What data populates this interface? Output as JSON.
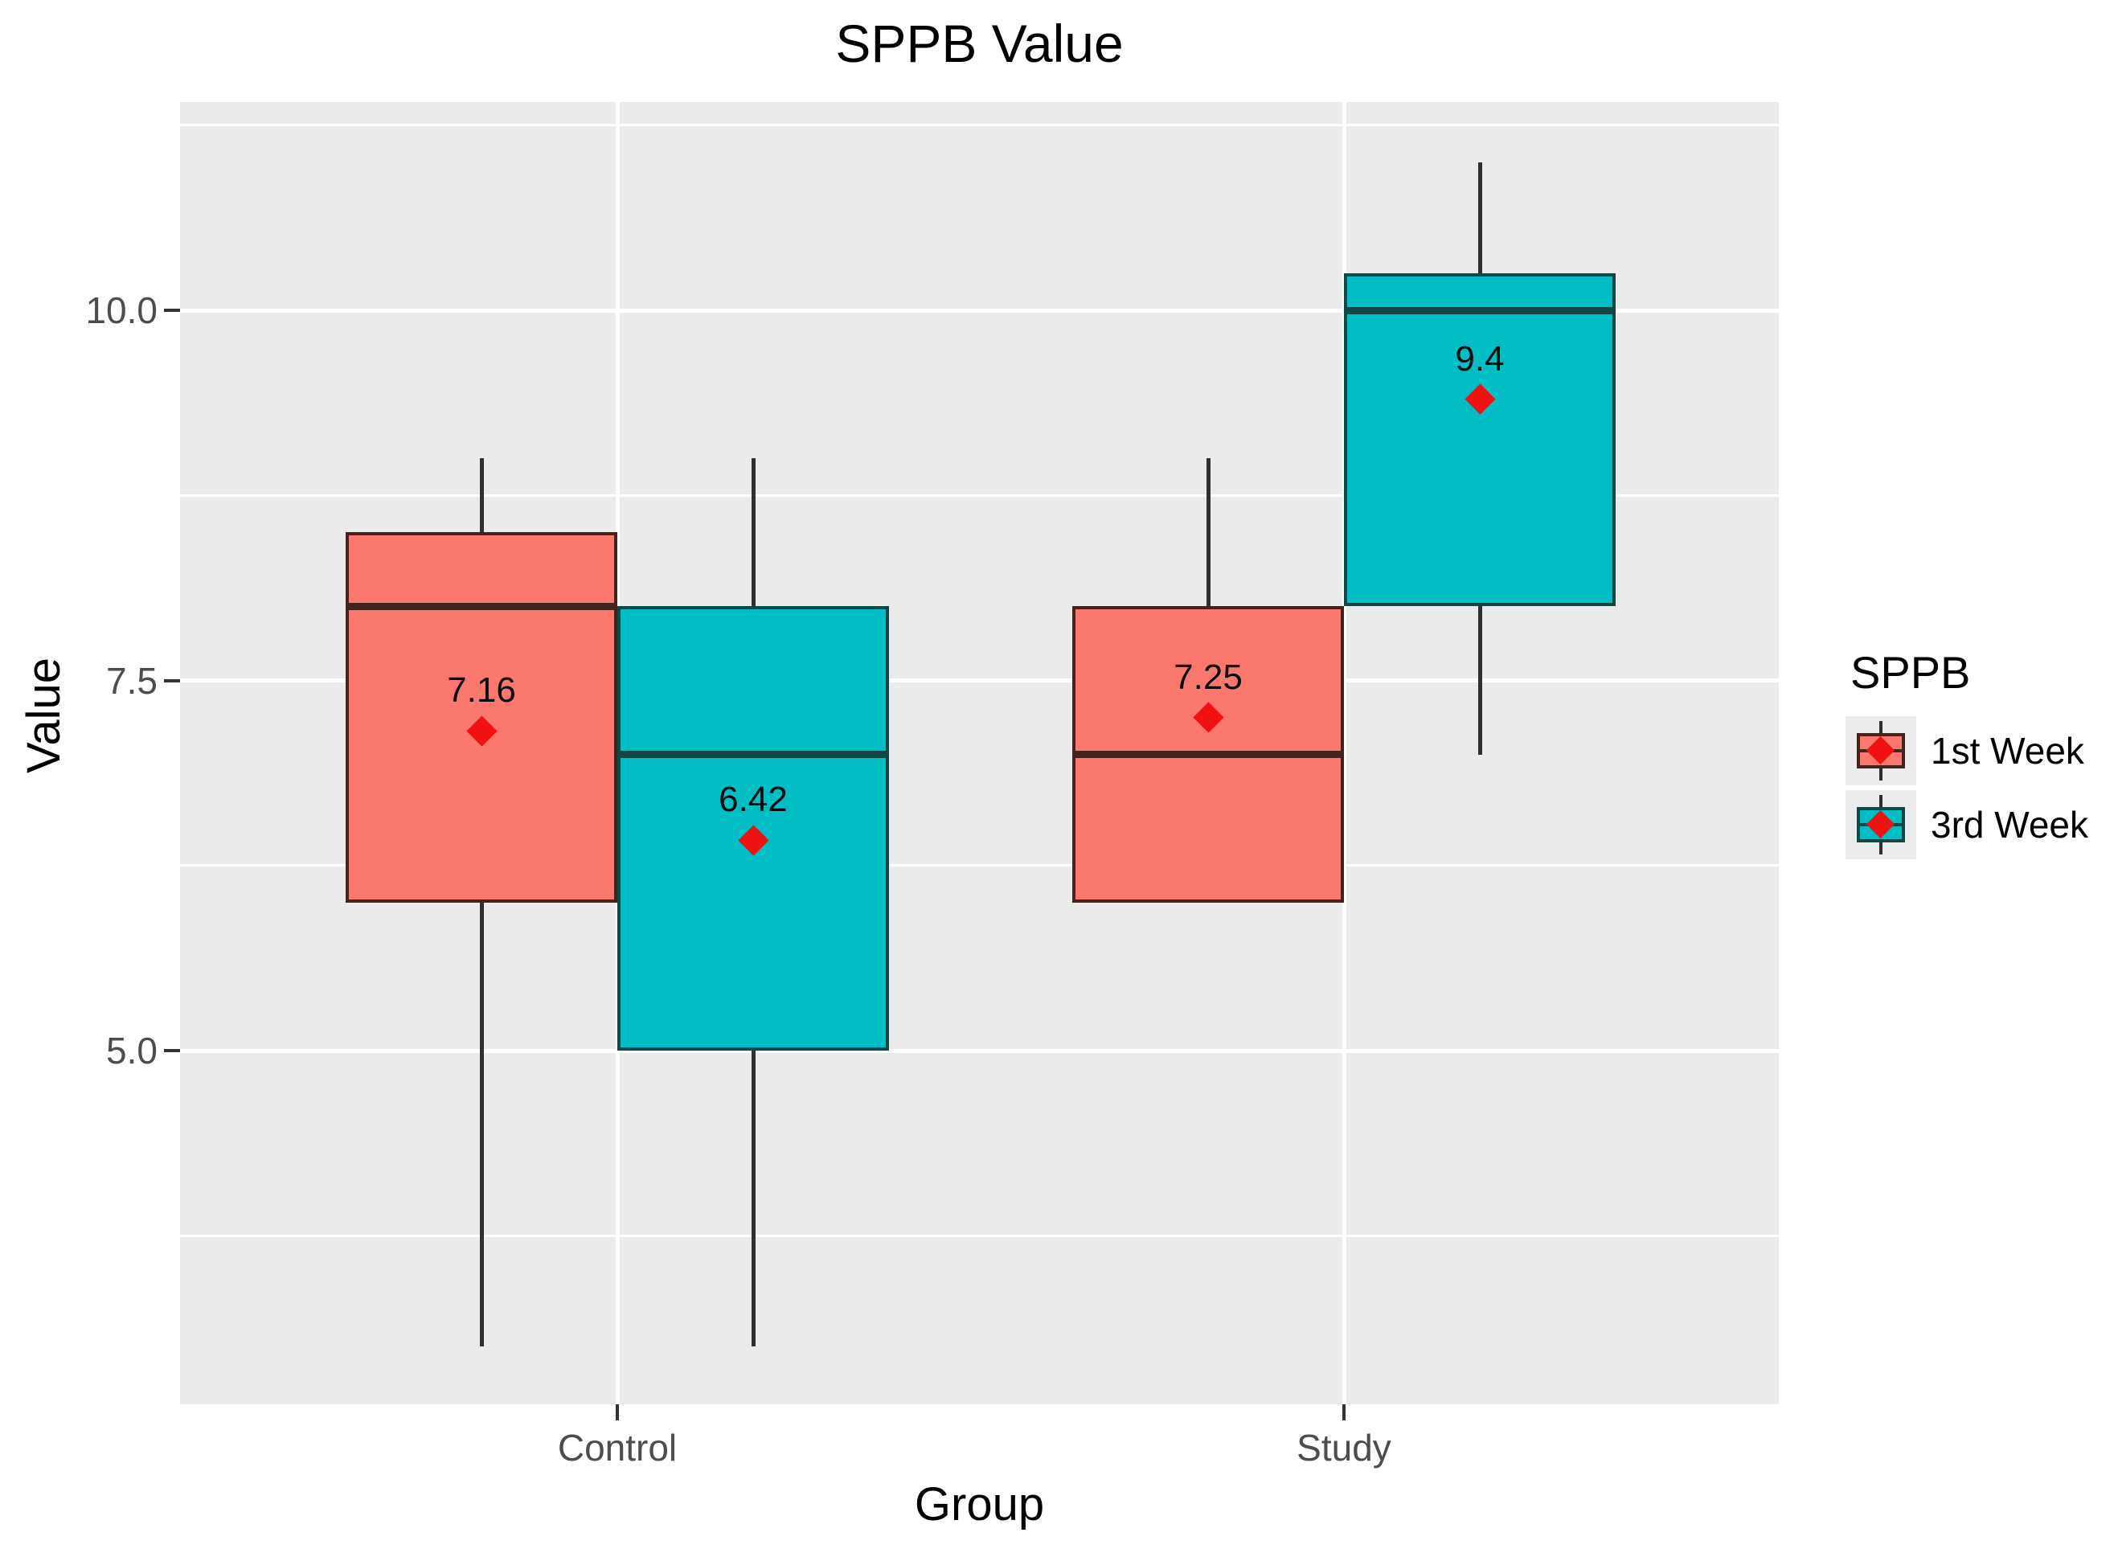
{
  "chart_data": {
    "type": "boxplot",
    "title": "SPPB Value",
    "xlabel": "Group",
    "ylabel": "Value",
    "ylim": [
      2.6,
      11.4
    ],
    "grid": "on",
    "legend_position": "right",
    "categories": [
      "Control",
      "Study"
    ],
    "yticks": [
      {
        "value": 5.0,
        "label": "5.0"
      },
      {
        "value": 7.5,
        "label": "7.5"
      },
      {
        "value": 10.0,
        "label": "10.0"
      }
    ],
    "minor_gridline_values": [
      3.75,
      6.25,
      8.75,
      11.25
    ],
    "legend": {
      "title": "SPPB",
      "entries": [
        {
          "label": "1st Week"
        },
        {
          "label": "3rd Week"
        }
      ]
    },
    "colors": {
      "panel_background": "#EBEBEB",
      "gridline": "#FFFFFF",
      "whisker": "#303030",
      "mean_point": "#F01212",
      "tick_label": "#4D4D4D",
      "series_1st_week_fill": "#FA786E",
      "series_1st_week_border": "#44221E",
      "series_3rd_week_fill": "#00BEC4",
      "series_3rd_week_border": "#0E4746"
    },
    "series": [
      {
        "name": "1st Week",
        "fill": "#FA786E",
        "border": "#44221E",
        "boxes": [
          {
            "group": "Control",
            "whisker_low": 3.0,
            "q1": 6.0,
            "median": 8.0,
            "q3": 8.5,
            "whisker_high": 9.0,
            "mean": 7.16,
            "mean_label": "7.16"
          },
          {
            "group": "Study",
            "whisker_low": 6.0,
            "q1": 6.0,
            "median": 7.0,
            "q3": 8.0,
            "whisker_high": 9.0,
            "mean": 7.25,
            "mean_label": "7.25"
          }
        ]
      },
      {
        "name": "3rd Week",
        "fill": "#00BEC4",
        "border": "#0E4746",
        "boxes": [
          {
            "group": "Control",
            "whisker_low": 3.0,
            "q1": 5.0,
            "median": 7.0,
            "q3": 8.0,
            "whisker_high": 9.0,
            "mean": 6.42,
            "mean_label": "6.42"
          },
          {
            "group": "Study",
            "whisker_low": 7.0,
            "q1": 8.0,
            "median": 10.0,
            "q3": 10.25,
            "whisker_high": 11.0,
            "mean": 9.4,
            "mean_label": "9.4"
          }
        ]
      }
    ]
  }
}
